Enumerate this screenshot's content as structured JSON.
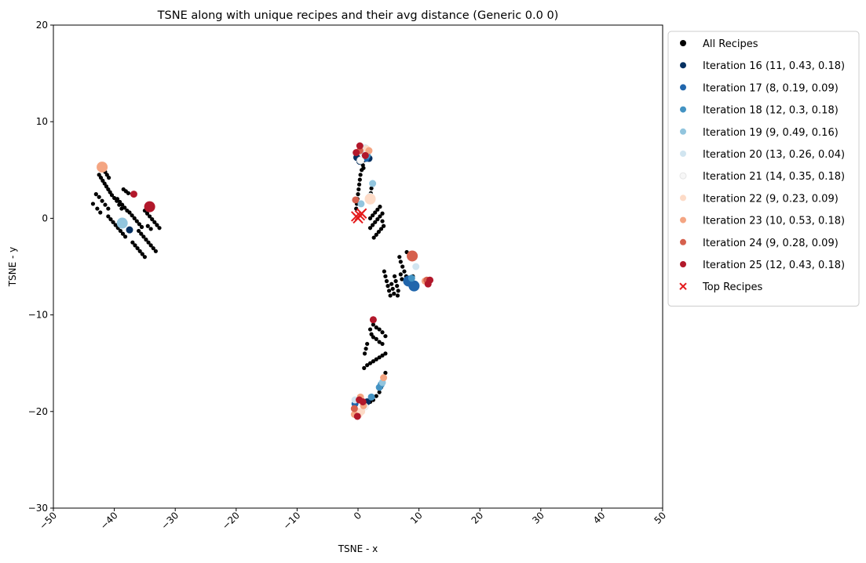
{
  "chart_data": {
    "type": "scatter",
    "title": "TSNE along with unique recipes and their avg distance (Generic 0.0 0)",
    "xlabel": "TSNE - x",
    "ylabel": "TSNE - y",
    "xlim": [
      -50,
      50
    ],
    "ylim": [
      -30,
      20
    ],
    "xticks": [
      -50,
      -40,
      -30,
      -20,
      -10,
      0,
      10,
      20,
      30,
      40,
      50
    ],
    "yticks": [
      -30,
      -20,
      -10,
      0,
      10,
      20
    ],
    "grid": false,
    "legend_position": "outside-right",
    "series": [
      {
        "name": "All Recipes",
        "color": "#000000",
        "marker": "circle",
        "points": [
          [
            -43.5,
            1.5
          ],
          [
            -43.0,
            2.5
          ],
          [
            -42.5,
            2.2
          ],
          [
            -42.0,
            1.8
          ],
          [
            -41.5,
            1.4
          ],
          [
            -41.0,
            1.0
          ],
          [
            -42.8,
            1.0
          ],
          [
            -42.3,
            0.6
          ],
          [
            -42.5,
            4.5
          ],
          [
            -42.2,
            4.2
          ],
          [
            -41.9,
            3.9
          ],
          [
            -41.6,
            3.6
          ],
          [
            -41.3,
            3.3
          ],
          [
            -41.0,
            3.0
          ],
          [
            -40.7,
            2.7
          ],
          [
            -40.4,
            2.4
          ],
          [
            -40.0,
            2.1
          ],
          [
            -39.6,
            1.8
          ],
          [
            -39.2,
            1.4
          ],
          [
            -38.8,
            1.0
          ],
          [
            -41.5,
            4.8
          ],
          [
            -41.2,
            4.5
          ],
          [
            -40.9,
            4.2
          ],
          [
            -41.0,
            0.2
          ],
          [
            -40.6,
            -0.1
          ],
          [
            -40.2,
            -0.4
          ],
          [
            -39.8,
            -0.7
          ],
          [
            -39.4,
            -1.0
          ],
          [
            -39.0,
            -1.3
          ],
          [
            -38.6,
            -1.6
          ],
          [
            -38.2,
            -1.9
          ],
          [
            -39.5,
            2.0
          ],
          [
            -39.1,
            1.7
          ],
          [
            -38.7,
            1.4
          ],
          [
            -38.3,
            1.1
          ],
          [
            -37.9,
            0.8
          ],
          [
            -38.5,
            3.0
          ],
          [
            -38.1,
            2.8
          ],
          [
            -37.7,
            2.6
          ],
          [
            -37.5,
            0.6
          ],
          [
            -37.1,
            0.3
          ],
          [
            -36.7,
            0.0
          ],
          [
            -36.3,
            -0.3
          ],
          [
            -35.9,
            -0.6
          ],
          [
            -35.5,
            -0.9
          ],
          [
            -37.0,
            -2.5
          ],
          [
            -36.6,
            -2.8
          ],
          [
            -36.2,
            -3.1
          ],
          [
            -35.8,
            -3.4
          ],
          [
            -35.4,
            -3.7
          ],
          [
            -35.0,
            -4.0
          ],
          [
            -36.0,
            -1.3
          ],
          [
            -35.6,
            -1.6
          ],
          [
            -35.2,
            -1.9
          ],
          [
            -34.8,
            -2.2
          ],
          [
            -34.4,
            -2.5
          ],
          [
            -34.0,
            -2.8
          ],
          [
            -33.6,
            -3.1
          ],
          [
            -33.2,
            -3.4
          ],
          [
            -35.0,
            0.8
          ],
          [
            -34.6,
            0.5
          ],
          [
            -34.2,
            0.2
          ],
          [
            -33.8,
            -0.1
          ],
          [
            -33.4,
            -0.4
          ],
          [
            -33.0,
            -0.7
          ],
          [
            -32.6,
            -1.0
          ],
          [
            -34.5,
            -0.8
          ],
          [
            -34.0,
            -1.1
          ],
          [
            1.0,
            6.0
          ],
          [
            0.8,
            5.5
          ],
          [
            0.6,
            5.0
          ],
          [
            0.4,
            4.5
          ],
          [
            0.3,
            4.0
          ],
          [
            0.2,
            3.5
          ],
          [
            0.1,
            3.0
          ],
          [
            0.0,
            2.5
          ],
          [
            -0.1,
            2.0
          ],
          [
            -0.2,
            1.5
          ],
          [
            -0.3,
            1.0
          ],
          [
            0.9,
            5.2
          ],
          [
            2.2,
            3.1
          ],
          [
            2.1,
            2.6
          ],
          [
            2.2,
            2.2
          ],
          [
            2.0,
            0.0
          ],
          [
            2.4,
            0.3
          ],
          [
            2.8,
            0.6
          ],
          [
            3.2,
            0.9
          ],
          [
            3.6,
            1.2
          ],
          [
            4.0,
            0.5
          ],
          [
            3.6,
            0.2
          ],
          [
            3.2,
            -0.1
          ],
          [
            2.8,
            -0.4
          ],
          [
            2.4,
            -0.7
          ],
          [
            2.0,
            -1.0
          ],
          [
            4.2,
            -0.8
          ],
          [
            3.8,
            -1.1
          ],
          [
            3.4,
            -1.4
          ],
          [
            3.0,
            -1.7
          ],
          [
            2.6,
            -2.0
          ],
          [
            4.0,
            -0.3
          ],
          [
            8.0,
            -3.5
          ],
          [
            8.4,
            -3.8
          ],
          [
            8.8,
            -4.1
          ],
          [
            7.0,
            -4.5
          ],
          [
            7.3,
            -5.0
          ],
          [
            7.6,
            -5.5
          ],
          [
            7.9,
            -6.0
          ],
          [
            8.2,
            -6.5
          ],
          [
            6.0,
            -6.0
          ],
          [
            6.2,
            -6.5
          ],
          [
            6.4,
            -7.0
          ],
          [
            6.6,
            -7.5
          ],
          [
            4.5,
            -6.0
          ],
          [
            4.7,
            -6.5
          ],
          [
            4.9,
            -7.0
          ],
          [
            5.1,
            -7.5
          ],
          [
            5.3,
            -8.0
          ],
          [
            5.5,
            -6.8
          ],
          [
            5.7,
            -7.3
          ],
          [
            5.9,
            -7.8
          ],
          [
            4.3,
            -5.5
          ],
          [
            6.8,
            -4.0
          ],
          [
            7.0,
            -5.8
          ],
          [
            7.2,
            -6.3
          ],
          [
            6.5,
            -8.0
          ],
          [
            8.5,
            -6.8
          ],
          [
            9.0,
            -6.0
          ],
          [
            2.5,
            -11.0
          ],
          [
            3.0,
            -11.3
          ],
          [
            3.5,
            -11.5
          ],
          [
            4.0,
            -11.8
          ],
          [
            4.5,
            -12.2
          ],
          [
            2.0,
            -11.5
          ],
          [
            2.2,
            -12.0
          ],
          [
            2.5,
            -12.3
          ],
          [
            3.0,
            -12.5
          ],
          [
            3.5,
            -12.8
          ],
          [
            4.0,
            -13.0
          ],
          [
            1.5,
            -13.0
          ],
          [
            1.3,
            -13.5
          ],
          [
            1.1,
            -14.0
          ],
          [
            1.0,
            -15.5
          ],
          [
            1.5,
            -15.2
          ],
          [
            2.0,
            -15.0
          ],
          [
            2.5,
            -14.8
          ],
          [
            3.0,
            -14.6
          ],
          [
            3.5,
            -14.4
          ],
          [
            4.0,
            -14.2
          ],
          [
            4.5,
            -14.0
          ],
          [
            4.5,
            -16.0
          ],
          [
            4.3,
            -16.5
          ],
          [
            4.0,
            -17.0
          ],
          [
            3.8,
            -17.5
          ],
          [
            3.5,
            -18.0
          ],
          [
            3.0,
            -18.4
          ],
          [
            2.5,
            -18.8
          ],
          [
            2.0,
            -19.0
          ]
        ]
      },
      {
        "name": "Iteration 16 (11, 0.43, 0.18)",
        "color": "#053061",
        "marker": "circle",
        "points": [
          [
            -0.2,
            6.3
          ],
          [
            1.8,
            6.2
          ],
          [
            0.3,
            5.9
          ],
          [
            -37.5,
            -1.2
          ],
          [
            1.5,
            -19.0
          ]
        ]
      },
      {
        "name": "Iteration 17 (8, 0.19, 0.09)",
        "color": "#2166ac",
        "marker": "circle",
        "points": [
          [
            9.2,
            -7.0
          ],
          [
            8.3,
            -6.5
          ],
          [
            1.3,
            6.2
          ],
          [
            -0.5,
            -19.2
          ]
        ],
        "sizes": [
          1,
          1,
          0,
          0
        ]
      },
      {
        "name": "Iteration 18 (12, 0.3, 0.18)",
        "color": "#4393c3",
        "marker": "circle",
        "points": [
          [
            3.5,
            -17.5
          ],
          [
            3.8,
            -17.2
          ],
          [
            2.2,
            -18.5
          ],
          [
            1.5,
            6.5
          ],
          [
            8.8,
            -6.2
          ]
        ]
      },
      {
        "name": "Iteration 19 (9, 0.49, 0.16)",
        "color": "#92c5de",
        "marker": "circle",
        "points": [
          [
            -38.7,
            -0.5
          ],
          [
            2.4,
            3.6
          ],
          [
            1.7,
            7.0
          ],
          [
            4.0,
            -17.0
          ],
          [
            1.0,
            6.7
          ],
          [
            0.5,
            1.5
          ]
        ],
        "sizes": [
          1,
          0,
          0,
          0,
          0,
          0
        ]
      },
      {
        "name": "Iteration 20 (13, 0.26, 0.04)",
        "color": "#d1e5f0",
        "marker": "circle",
        "points": [
          [
            1.2,
            7.3
          ],
          [
            -0.5,
            -18.8
          ],
          [
            0.9,
            6.8
          ],
          [
            2.0,
            2.3
          ],
          [
            9.5,
            -5.0
          ]
        ]
      },
      {
        "name": "Iteration 21 (14, 0.35, 0.18)",
        "color": "#f7f7f7",
        "marker": "circle",
        "points": [
          [
            0.4,
            6.0
          ],
          [
            1.1,
            -19.5
          ]
        ]
      },
      {
        "name": "Iteration 22 (9, 0.23, 0.09)",
        "color": "#fddbc7",
        "marker": "circle",
        "points": [
          [
            2.0,
            2.0
          ],
          [
            -0.1,
            -20.2
          ],
          [
            0.6,
            -20.0
          ],
          [
            1.4,
            7.2
          ]
        ],
        "sizes": [
          1,
          1,
          0,
          0
        ]
      },
      {
        "name": "Iteration 23 (10, 0.53, 0.18)",
        "color": "#f4a582",
        "marker": "circle",
        "points": [
          [
            -42.0,
            5.3
          ],
          [
            4.2,
            -16.5
          ],
          [
            0.9,
            -19.4
          ],
          [
            -0.6,
            -20.3
          ],
          [
            0.4,
            -18.5
          ],
          [
            11.0,
            -6.5
          ],
          [
            1.8,
            7.0
          ]
        ],
        "sizes": [
          1,
          0,
          0,
          0,
          0,
          0,
          0
        ]
      },
      {
        "name": "Iteration 24 (9, 0.28, 0.09)",
        "color": "#d6604d",
        "marker": "circle",
        "points": [
          [
            8.9,
            -3.9
          ],
          [
            -0.6,
            -19.7
          ],
          [
            -0.4,
            1.9
          ],
          [
            0.3,
            7.0
          ],
          [
            11.3,
            -6.4
          ]
        ],
        "sizes": [
          1,
          0,
          0,
          0,
          0
        ]
      },
      {
        "name": "Iteration 25 (12, 0.43, 0.18)",
        "color": "#b2182b",
        "marker": "circle",
        "points": [
          [
            -34.2,
            1.2
          ],
          [
            -36.8,
            2.5
          ],
          [
            2.5,
            -10.5
          ],
          [
            11.8,
            -6.4
          ],
          [
            11.5,
            -6.8
          ],
          [
            0.3,
            7.5
          ],
          [
            -0.3,
            6.8
          ],
          [
            0.8,
            -19.0
          ],
          [
            0.2,
            -18.8
          ],
          [
            -0.1,
            -20.5
          ],
          [
            1.2,
            6.5
          ]
        ],
        "sizes": [
          1,
          0,
          0,
          0,
          0,
          0,
          0,
          0,
          0,
          0,
          0
        ]
      },
      {
        "name": "Top Recipes",
        "color": "#e41a1c",
        "marker": "x",
        "points": [
          [
            0.0,
            0.0
          ],
          [
            0.3,
            0.3
          ],
          [
            0.6,
            0.5
          ],
          [
            -0.3,
            0.2
          ]
        ]
      }
    ]
  }
}
